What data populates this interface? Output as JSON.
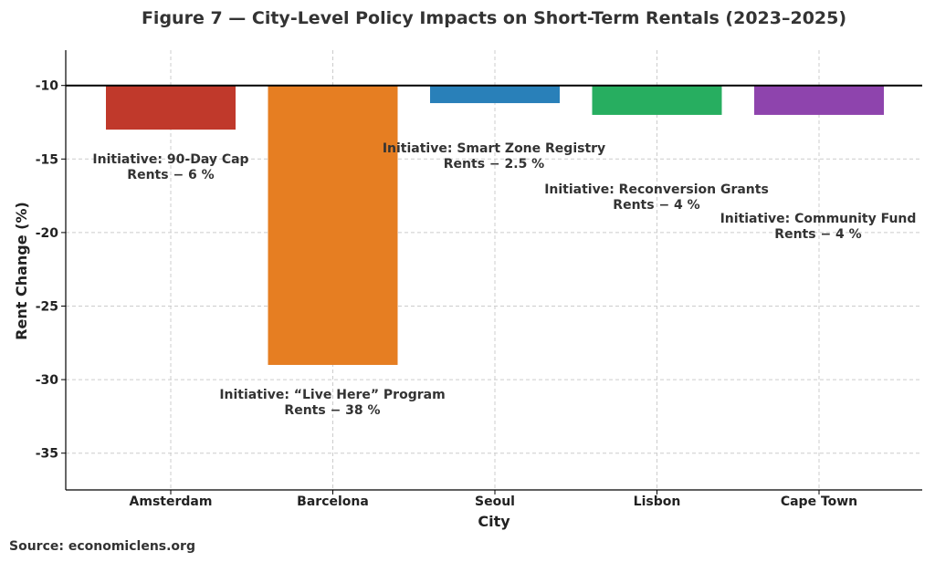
{
  "chart_data": {
    "type": "bar",
    "title": "Figure 7 — City-Level Policy Impacts on Short-Term Rentals (2023–2025)",
    "xlabel": "City",
    "ylabel": "Rent Change (%)",
    "categories": [
      "Amsterdam",
      "Barcelona",
      "Seoul",
      "Lisbon",
      "Cape Town"
    ],
    "values": [
      -13,
      -29,
      -11.2,
      -12,
      -12
    ],
    "baseline": -10,
    "colors": [
      "#c0392b",
      "#e67e22",
      "#2980b9",
      "#27ae60",
      "#8e44ad"
    ],
    "ylim": [
      -37.5,
      -7.6
    ],
    "yticks": [
      -10,
      -15,
      -20,
      -25,
      -30,
      -35
    ],
    "grid": true,
    "annotations": [
      {
        "line1": "Initiative: 90-Day Cap",
        "line2": "Rents − 6 %"
      },
      {
        "line1": "Initiative: “Live Here” Program",
        "line2": "Rents − 38 %"
      },
      {
        "line1": "Initiative: Smart Zone Registry",
        "line2": "Rents − 2.5 %"
      },
      {
        "line1": "Initiative: Reconversion Grants",
        "line2": "Rents − 4 %"
      },
      {
        "line1": "Initiative: Community Fund",
        "line2": "Rents − 4 %"
      }
    ]
  },
  "source": "Source: economiclens.org"
}
